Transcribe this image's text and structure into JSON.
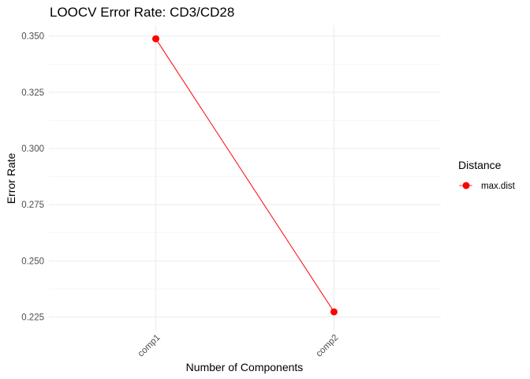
{
  "chart_data": {
    "type": "line",
    "title": "LOOCV Error Rate: CD3/CD28",
    "xlabel": "Number of Components",
    "ylabel": "Error Rate",
    "categories": [
      "comp1",
      "comp2"
    ],
    "series": [
      {
        "name": "max.dist",
        "values": [
          0.3488,
          0.2273
        ],
        "color": "#FF0000"
      }
    ],
    "yticks": [
      0.225,
      0.25,
      0.275,
      0.3,
      0.325,
      0.35
    ],
    "ytick_labels": [
      "0.225",
      "0.250",
      "0.275",
      "0.300",
      "0.325",
      "0.350"
    ],
    "ylim": [
      0.2185,
      0.3548
    ],
    "grid": true,
    "legend": {
      "title": "Distance",
      "position": "right"
    },
    "x_tick_rotation": 45
  }
}
